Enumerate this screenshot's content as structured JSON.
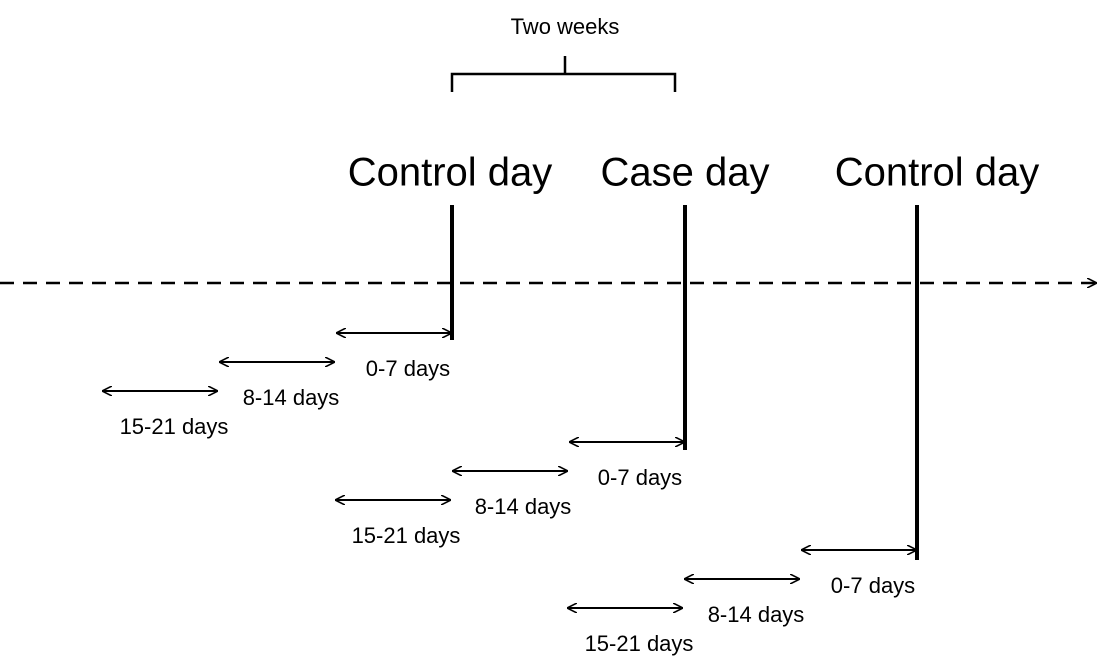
{
  "bracket_label": "Two weeks",
  "days": [
    {
      "label": "Control day",
      "windows": [
        "0-7 days",
        "8-14 days",
        "15-21 days"
      ]
    },
    {
      "label": "Case day",
      "windows": [
        "0-7 days",
        "8-14 days",
        "15-21 days"
      ]
    },
    {
      "label": "Control day",
      "windows": [
        "0-7 days",
        "8-14 days",
        "15-21 days"
      ]
    }
  ]
}
